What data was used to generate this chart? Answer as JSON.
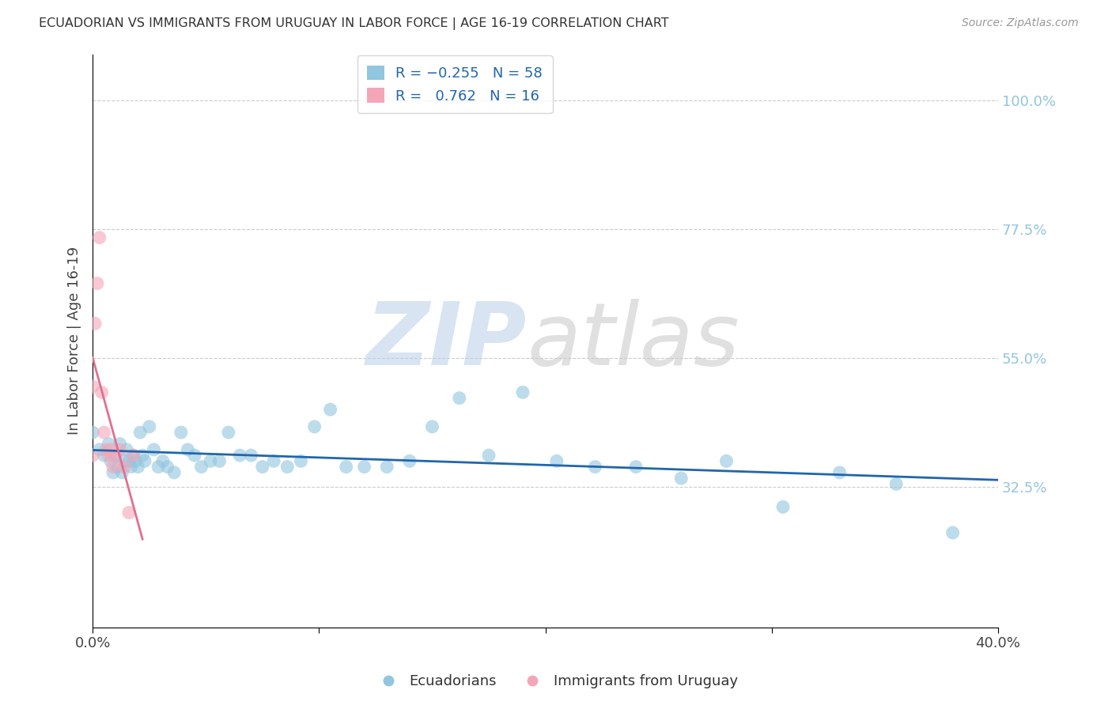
{
  "title": "ECUADORIAN VS IMMIGRANTS FROM URUGUAY IN LABOR FORCE | AGE 16-19 CORRELATION CHART",
  "source": "Source: ZipAtlas.com",
  "ylabel": "In Labor Force | Age 16-19",
  "xmin": 0.0,
  "xmax": 0.4,
  "ymin": 0.08,
  "ymax": 1.08,
  "color_blue": "#92c5de",
  "color_pink": "#f4a6b8",
  "color_blue_line": "#2166ac",
  "color_pink_line": "#e07090",
  "ytick_vals": [
    0.325,
    0.55,
    0.775,
    1.0
  ],
  "ytick_labels": [
    "32.5%",
    "55.0%",
    "77.5%",
    "100.0%"
  ],
  "ecuadorians_x": [
    0.0,
    0.003,
    0.005,
    0.007,
    0.008,
    0.009,
    0.01,
    0.011,
    0.012,
    0.013,
    0.014,
    0.015,
    0.016,
    0.017,
    0.018,
    0.019,
    0.02,
    0.021,
    0.022,
    0.023,
    0.025,
    0.027,
    0.029,
    0.031,
    0.033,
    0.036,
    0.039,
    0.042,
    0.045,
    0.048,
    0.052,
    0.056,
    0.06,
    0.065,
    0.07,
    0.075,
    0.08,
    0.086,
    0.092,
    0.098,
    0.105,
    0.112,
    0.12,
    0.13,
    0.14,
    0.15,
    0.162,
    0.175,
    0.19,
    0.205,
    0.222,
    0.24,
    0.26,
    0.28,
    0.305,
    0.33,
    0.355,
    0.38
  ],
  "ecuadorians_y": [
    0.42,
    0.39,
    0.38,
    0.4,
    0.37,
    0.35,
    0.38,
    0.36,
    0.4,
    0.35,
    0.37,
    0.39,
    0.37,
    0.36,
    0.38,
    0.37,
    0.36,
    0.42,
    0.38,
    0.37,
    0.43,
    0.39,
    0.36,
    0.37,
    0.36,
    0.35,
    0.42,
    0.39,
    0.38,
    0.36,
    0.37,
    0.37,
    0.42,
    0.38,
    0.38,
    0.36,
    0.37,
    0.36,
    0.37,
    0.43,
    0.46,
    0.36,
    0.36,
    0.36,
    0.37,
    0.43,
    0.48,
    0.38,
    0.49,
    0.37,
    0.36,
    0.36,
    0.34,
    0.37,
    0.29,
    0.35,
    0.33,
    0.245
  ],
  "uruguay_x": [
    0.0,
    0.0,
    0.001,
    0.002,
    0.003,
    0.004,
    0.005,
    0.006,
    0.007,
    0.008,
    0.009,
    0.01,
    0.012,
    0.014,
    0.016,
    0.018
  ],
  "uruguay_y": [
    0.38,
    0.5,
    0.61,
    0.68,
    0.76,
    0.49,
    0.42,
    0.39,
    0.38,
    0.39,
    0.36,
    0.38,
    0.39,
    0.36,
    0.28,
    0.38
  ]
}
